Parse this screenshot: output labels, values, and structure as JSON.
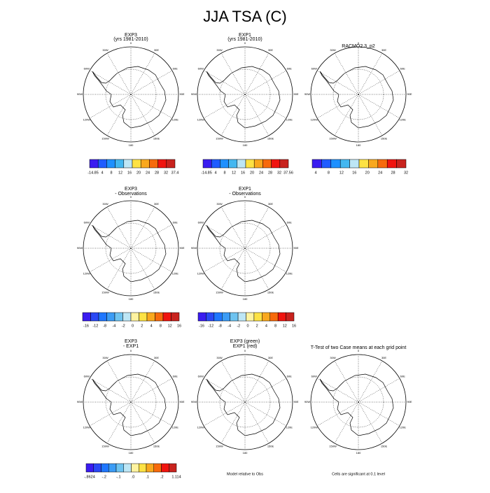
{
  "title": "JJA TSA (C)",
  "longitude_labels": [
    "0",
    "30E",
    "60E",
    "90E",
    "120E",
    "150E",
    "180",
    "150W",
    "120W",
    "90W",
    "60W",
    "30W"
  ],
  "panels": [
    {
      "title": [
        "EXP3",
        "(yrs 1981-2010)"
      ],
      "colorbar": {
        "labels": [
          "-14.85",
          "4",
          "8",
          "12",
          "16",
          "20",
          "24",
          "28",
          "32",
          "37.4"
        ],
        "colors": [
          "#3a1cf0",
          "#1f5cff",
          "#1e90ff",
          "#43b7f0",
          "#bde6f5",
          "#fde244",
          "#f9a81e",
          "#f76a0c",
          "#f0140f",
          "#c8231e"
        ]
      }
    },
    {
      "title": [
        "EXP1",
        "(yrs 1981-2010)"
      ],
      "colorbar": {
        "labels": [
          "-14.85",
          "4",
          "8",
          "12",
          "16",
          "20",
          "24",
          "28",
          "32",
          "37.56"
        ],
        "colors": [
          "#3a1cf0",
          "#1f5cff",
          "#1e90ff",
          "#43b7f0",
          "#bde6f5",
          "#fde244",
          "#f9a81e",
          "#f76a0c",
          "#f0140f",
          "#c8231e"
        ]
      }
    },
    {
      "title": [
        "RACMO2.3_p2"
      ],
      "colorbar": {
        "labels": [
          "4",
          "8",
          "12",
          "16",
          "20",
          "24",
          "28",
          "32"
        ],
        "colors": [
          "#3a1cf0",
          "#1f5cff",
          "#1e90ff",
          "#43b7f0",
          "#bde6f5",
          "#fde244",
          "#f9a81e",
          "#f76a0c",
          "#f0140f",
          "#c8231e"
        ]
      }
    },
    {
      "title": [
        "EXP3",
        "- Observations"
      ],
      "colorbar": {
        "labels": [
          "-16",
          "-12",
          "-8",
          "-4",
          "-2",
          "0",
          "2",
          "4",
          "8",
          "12",
          "16"
        ],
        "colors": [
          "#3a1cf0",
          "#2a48f5",
          "#1f77ff",
          "#3b9cf5",
          "#6ec3f0",
          "#bde6f5",
          "#fff3a0",
          "#fde244",
          "#f9a81e",
          "#f76a0c",
          "#f0140f",
          "#c8231e"
        ]
      }
    },
    {
      "title": [
        "EXP1",
        "- Observations"
      ],
      "colorbar": {
        "labels": [
          "-16",
          "-12",
          "-8",
          "-4",
          "-2",
          "0",
          "2",
          "4",
          "8",
          "12",
          "16"
        ],
        "colors": [
          "#3a1cf0",
          "#2a48f5",
          "#1f77ff",
          "#3b9cf5",
          "#6ec3f0",
          "#bde6f5",
          "#fff3a0",
          "#fde244",
          "#f9a81e",
          "#f76a0c",
          "#f0140f",
          "#c8231e"
        ]
      }
    },
    {
      "title": [
        "EXP3",
        "- EXP1"
      ],
      "colorbar": {
        "labels": [
          "-.8624",
          "-.2",
          "-.1",
          ".0",
          ".1",
          ".2",
          "1.114"
        ],
        "colors": [
          "#3a1cf0",
          "#2a48f5",
          "#1f77ff",
          "#3b9cf5",
          "#6ec3f0",
          "#bde6f5",
          "#fff3a0",
          "#fde244",
          "#f9a81e",
          "#f76a0c",
          "#f0140f",
          "#c8231e"
        ]
      }
    },
    {
      "title": [
        "EXP3 (green)",
        "EXP1 (red)"
      ],
      "footer": "Model relative to Obs"
    },
    {
      "title": [
        "T-Test of two Case means at each grid point"
      ],
      "footer": "Cells are significant at 0.1 level"
    }
  ]
}
